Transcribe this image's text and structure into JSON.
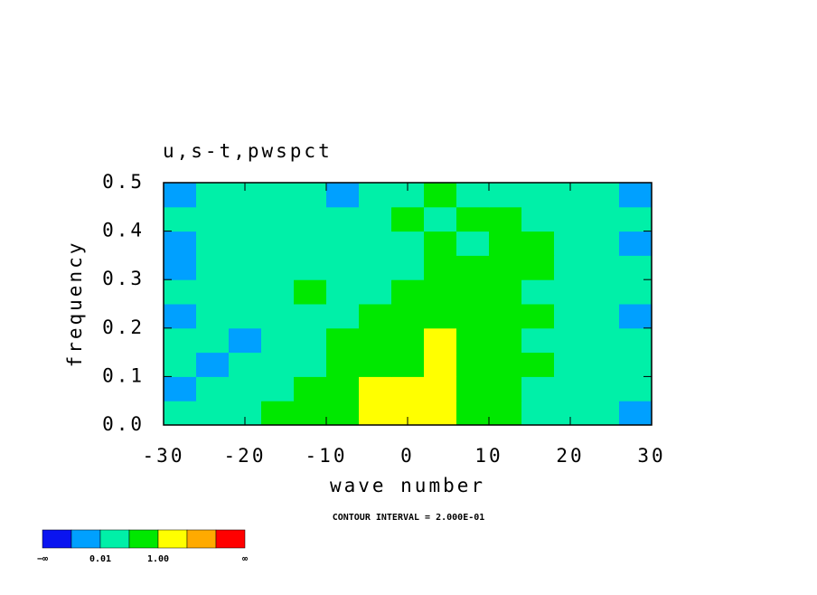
{
  "chart_data": {
    "type": "contour",
    "title": "u,s-t,pwspct",
    "xlabel": "wave number",
    "ylabel": "frequency",
    "annotation": "CONTOUR INTERVAL = 2.000E-01",
    "xlim": [
      -30,
      30
    ],
    "ylim": [
      0,
      0.5
    ],
    "xticks": [
      -30,
      -20,
      -10,
      0,
      10,
      20,
      30
    ],
    "yticks": [
      {
        "value": 0,
        "label": "0.0"
      },
      0.1,
      0.2,
      0.3,
      0.4,
      0.5
    ],
    "x": [
      -28,
      -24,
      -20,
      -16,
      -12,
      -8,
      -4,
      0,
      4,
      8,
      12,
      16,
      20,
      24,
      28
    ],
    "y": [
      0.025,
      0.075,
      0.125,
      0.175,
      0.225,
      0.275,
      0.325,
      0.375,
      0.425,
      0.475
    ],
    "z": [
      [
        0.05,
        0.05,
        0.05,
        0.3,
        0.3,
        0.3,
        2,
        2,
        2,
        0.3,
        0.3,
        0.05,
        0.05,
        0.05,
        0.005
      ],
      [
        0.005,
        0.05,
        0.05,
        0.05,
        0.3,
        0.3,
        2,
        2,
        2,
        0.3,
        0.3,
        0.05,
        0.05,
        0.05,
        0.05
      ],
      [
        0.05,
        0.005,
        0.05,
        0.05,
        0.05,
        0.3,
        0.3,
        0.3,
        2,
        0.3,
        0.3,
        0.3,
        0.05,
        0.05,
        0.05
      ],
      [
        0.05,
        0.05,
        0.005,
        0.05,
        0.05,
        0.3,
        0.3,
        0.3,
        2,
        0.3,
        0.3,
        0.05,
        0.05,
        0.05,
        0.05
      ],
      [
        0.005,
        0.05,
        0.05,
        0.05,
        0.05,
        0.05,
        0.3,
        0.3,
        0.3,
        0.3,
        0.3,
        0.3,
        0.05,
        0.05,
        0.005
      ],
      [
        0.05,
        0.05,
        0.05,
        0.05,
        0.3,
        0.05,
        0.05,
        0.3,
        0.3,
        0.3,
        0.3,
        0.05,
        0.05,
        0.05,
        0.05
      ],
      [
        0.005,
        0.05,
        0.05,
        0.05,
        0.05,
        0.05,
        0.05,
        0.05,
        0.3,
        0.3,
        0.3,
        0.3,
        0.05,
        0.05,
        0.05
      ],
      [
        0.005,
        0.05,
        0.05,
        0.05,
        0.05,
        0.05,
        0.05,
        0.05,
        0.3,
        0.05,
        0.3,
        0.3,
        0.05,
        0.05,
        0.005
      ],
      [
        0.05,
        0.05,
        0.05,
        0.05,
        0.05,
        0.05,
        0.05,
        0.3,
        0.05,
        0.3,
        0.3,
        0.05,
        0.05,
        0.05,
        0.05
      ],
      [
        0.005,
        0.05,
        0.05,
        0.05,
        0.05,
        0.005,
        0.05,
        0.05,
        0.3,
        0.05,
        0.05,
        0.05,
        0.05,
        0.05,
        0.005
      ]
    ],
    "levels": [
      0.001,
      0.01,
      0.1,
      1,
      10,
      100
    ],
    "colors": [
      "#0a14f0",
      "#00a0ff",
      "#00f0a8",
      "#00e800",
      "#ffff00",
      "#ffaa00",
      "#ff0000"
    ],
    "colorbar_ticks": [
      {
        "value": 0.01,
        "label": "0.01"
      },
      {
        "value": 1,
        "label": "1.00"
      }
    ],
    "colorbar_min_label": "−∞",
    "colorbar_max_label": "∞"
  }
}
